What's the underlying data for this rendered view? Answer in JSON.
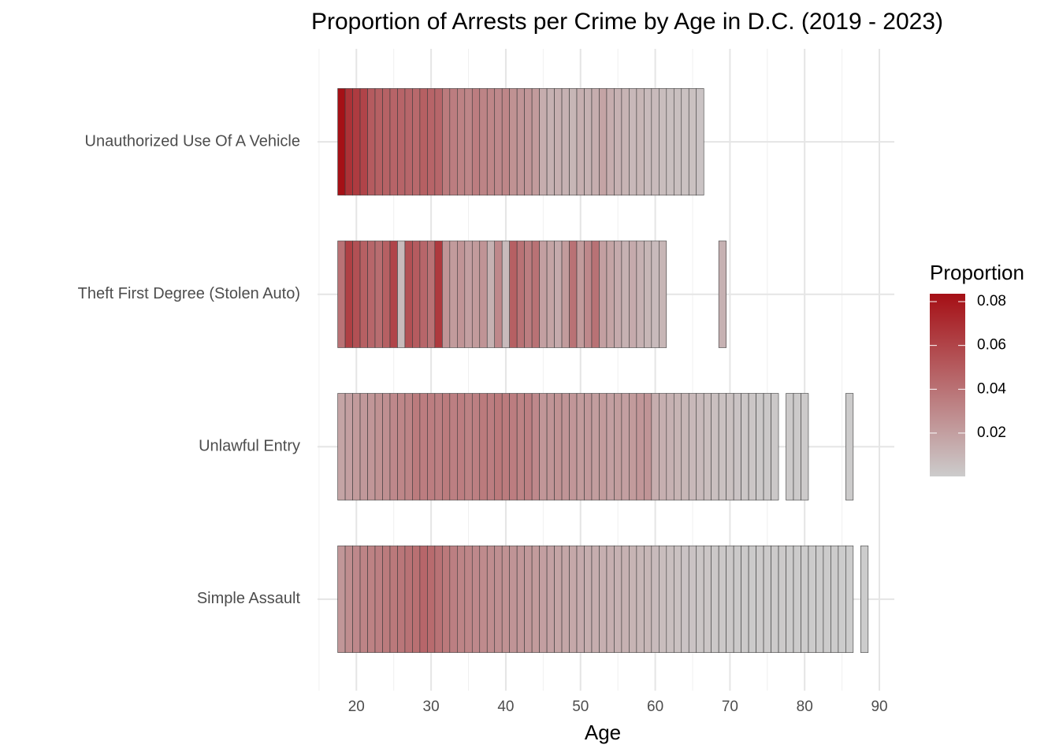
{
  "chart_data": {
    "type": "heatmap",
    "title": "Proportion of Arrests per Crime by Age in D.C. (2019 - 2023)",
    "x_label": "Age",
    "legend_title": "Proportion",
    "categories": [
      "Unauthorized Use Of A Vehicle",
      "Theft First Degree (Stolen Auto)",
      "Unlawful Entry",
      "Simple Assault"
    ],
    "x": [
      18,
      19,
      20,
      21,
      22,
      23,
      24,
      25,
      26,
      27,
      28,
      29,
      30,
      31,
      32,
      33,
      34,
      35,
      36,
      37,
      38,
      39,
      40,
      41,
      42,
      43,
      44,
      45,
      46,
      47,
      48,
      49,
      50,
      51,
      52,
      53,
      54,
      55,
      56,
      57,
      58,
      59,
      60,
      61,
      62,
      63,
      64,
      65,
      66,
      67,
      68,
      69,
      70,
      71,
      72,
      73,
      74,
      75,
      76,
      77,
      78,
      79,
      80,
      81,
      82,
      83,
      84,
      85,
      86,
      87,
      88
    ],
    "values": [
      [
        0.083,
        0.068,
        0.064,
        0.06,
        0.05,
        0.048,
        0.047,
        0.046,
        0.046,
        0.045,
        0.044,
        0.048,
        0.046,
        0.045,
        0.036,
        0.035,
        0.033,
        0.031,
        0.035,
        0.032,
        0.031,
        0.03,
        0.031,
        0.026,
        0.025,
        0.024,
        0.022,
        0.014,
        0.012,
        0.013,
        0.012,
        0.01,
        0.013,
        0.012,
        0.014,
        0.018,
        0.014,
        0.012,
        0.011,
        0.009,
        0.01,
        0.008,
        0.008,
        0.007,
        0.006,
        0.006,
        0.005,
        0.005,
        0.004,
        null,
        null,
        null,
        null,
        null,
        null,
        null,
        null,
        null,
        null,
        null,
        null,
        null,
        null,
        null,
        null,
        null,
        null,
        null,
        null,
        null,
        null
      ],
      [
        0.04,
        0.062,
        0.055,
        0.048,
        0.045,
        0.042,
        0.048,
        0.06,
        0.008,
        0.055,
        0.05,
        0.045,
        0.04,
        0.065,
        0.025,
        0.022,
        0.025,
        0.02,
        0.022,
        0.025,
        0.012,
        0.03,
        0.008,
        0.048,
        0.04,
        0.035,
        0.04,
        0.02,
        0.018,
        0.015,
        0.022,
        0.04,
        0.022,
        0.03,
        0.04,
        0.02,
        0.018,
        0.015,
        0.012,
        0.015,
        0.012,
        0.01,
        0.008,
        0.01,
        null,
        null,
        null,
        null,
        null,
        null,
        null,
        0.012,
        null,
        null,
        null,
        null,
        null,
        null,
        null,
        null,
        null,
        null,
        null,
        null,
        null,
        null,
        null,
        null,
        null,
        null,
        null
      ],
      [
        0.018,
        0.02,
        0.022,
        0.023,
        0.024,
        0.026,
        0.027,
        0.03,
        0.031,
        0.032,
        0.036,
        0.035,
        0.035,
        0.034,
        0.036,
        0.034,
        0.035,
        0.033,
        0.034,
        0.036,
        0.035,
        0.037,
        0.036,
        0.035,
        0.033,
        0.034,
        0.03,
        0.024,
        0.025,
        0.026,
        0.025,
        0.024,
        0.022,
        0.023,
        0.021,
        0.022,
        0.02,
        0.021,
        0.02,
        0.022,
        0.024,
        0.025,
        0.014,
        0.013,
        0.012,
        0.011,
        0.01,
        0.009,
        0.008,
        0.007,
        0.006,
        0.005,
        0.005,
        0.004,
        0.003,
        0.003,
        0.002,
        0.002,
        0.002,
        null,
        0.001,
        0.001,
        0.001,
        null,
        null,
        null,
        null,
        null,
        0.0005,
        null,
        null
      ],
      [
        0.024,
        0.028,
        0.03,
        0.032,
        0.033,
        0.034,
        0.036,
        0.037,
        0.038,
        0.04,
        0.041,
        0.045,
        0.043,
        0.04,
        0.037,
        0.034,
        0.032,
        0.031,
        0.03,
        0.029,
        0.028,
        0.027,
        0.026,
        0.025,
        0.024,
        0.023,
        0.022,
        0.02,
        0.019,
        0.018,
        0.017,
        0.016,
        0.015,
        0.014,
        0.014,
        0.013,
        0.013,
        0.012,
        0.012,
        0.011,
        0.01,
        0.01,
        0.008,
        0.007,
        0.006,
        0.005,
        0.004,
        0.004,
        0.003,
        0.003,
        0.002,
        0.002,
        0.002,
        0.0015,
        0.0014,
        0.0013,
        0.0012,
        0.0011,
        0.001,
        0.0009,
        0.0008,
        0.0008,
        0.0007,
        0.0006,
        0.0006,
        0.0005,
        0.0005,
        0.0004,
        0.0004,
        null,
        0.0002
      ]
    ],
    "xlim": [
      14.8,
      92.0
    ],
    "xticks": [
      20,
      30,
      40,
      50,
      60,
      70,
      80,
      90
    ],
    "xminorticks": [
      15,
      25,
      35,
      45,
      55,
      65,
      75,
      85
    ],
    "grid": true,
    "colorscale": {
      "low": "#cccccc",
      "high": "#a50f15"
    },
    "colorlim": [
      0.0002,
      0.0836
    ],
    "colorticks": [
      0.02,
      0.04,
      0.06,
      0.08
    ],
    "legend_position": "right"
  }
}
